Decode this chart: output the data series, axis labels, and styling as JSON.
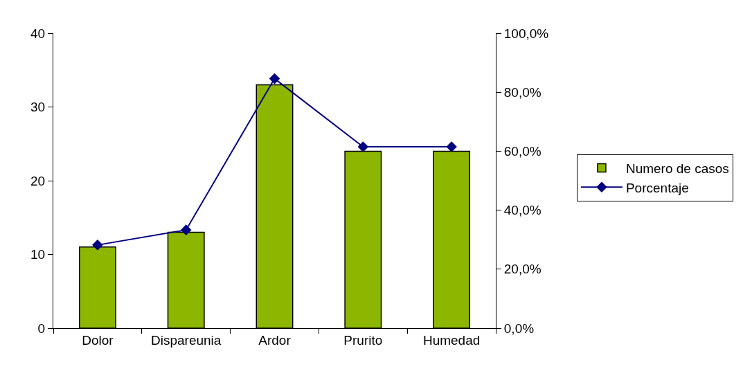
{
  "chart_data": {
    "type": "bar",
    "categories": [
      "Dolor",
      "Dispareunia",
      "Ardor",
      "Prurito",
      "Humedad"
    ],
    "series": [
      {
        "name": "Numero de casos",
        "color": "#8db600",
        "values": [
          11,
          13,
          33,
          24,
          24
        ]
      },
      {
        "name": "Porcentaje",
        "type": "line",
        "axis": "y2",
        "color": "#000080",
        "values": [
          28.2,
          33.3,
          84.6,
          61.5,
          61.5
        ]
      }
    ],
    "ylim": [
      0,
      40
    ],
    "yticks": [
      0,
      10,
      20,
      30,
      40
    ],
    "y2lim": [
      0,
      100
    ],
    "y2ticks": [
      {
        "value": 0,
        "label": "0,0%"
      },
      {
        "value": 20,
        "label": "20,0%"
      },
      {
        "value": 40,
        "label": "40,0%"
      },
      {
        "value": 60,
        "label": "60,0%"
      },
      {
        "value": 80,
        "label": "80,0%"
      },
      {
        "value": 100,
        "label": "100,0%"
      }
    ],
    "legend": "right",
    "marker": "diamond",
    "line_style": "solid"
  }
}
